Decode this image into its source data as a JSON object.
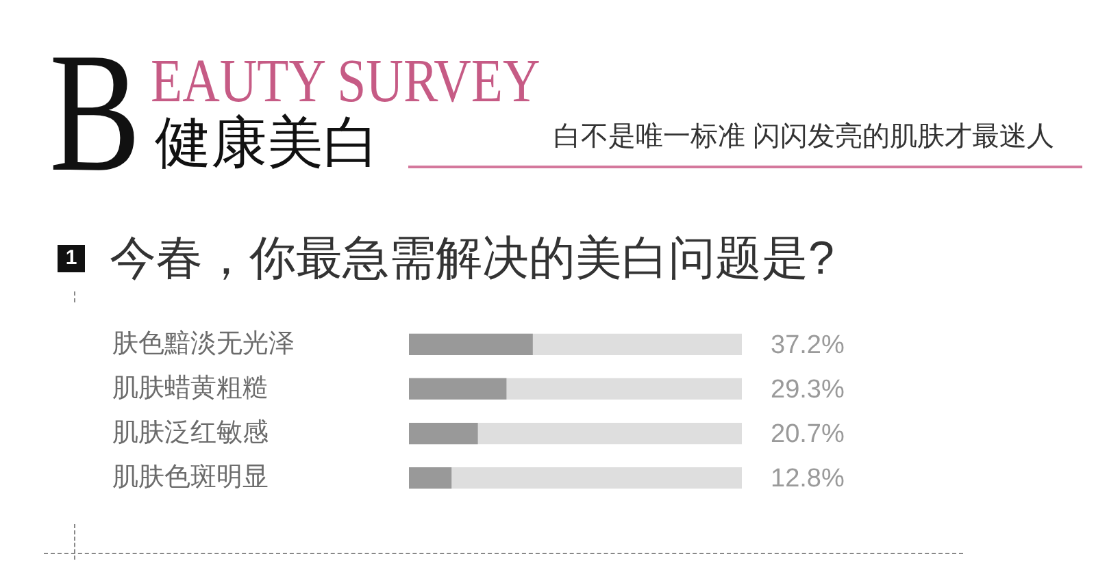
{
  "chart_data": {
    "type": "bar",
    "orientation": "horizontal",
    "title": "BEAUTY SURVEY\n健康美白",
    "subtitle": "白不是唯一标准 闪闪发亮的肌肤才最迷人",
    "annotations": [
      "1",
      "今春，你最急需解决的美白问题是?"
    ],
    "categories": [
      "肤色黯淡无光泽",
      "肌肤蜡黄粗糙",
      "肌肤泛红敏感",
      "肌肤色斑明显"
    ],
    "values": [
      37.2,
      29.3,
      20.7,
      12.8
    ],
    "value_labels": [
      "37.2%",
      "29.3%",
      "20.7%",
      "12.8%"
    ],
    "color": "#999999",
    "xlim": [
      0,
      100
    ],
    "tick_labels": "y",
    "grid": false,
    "legend": false
  }
}
